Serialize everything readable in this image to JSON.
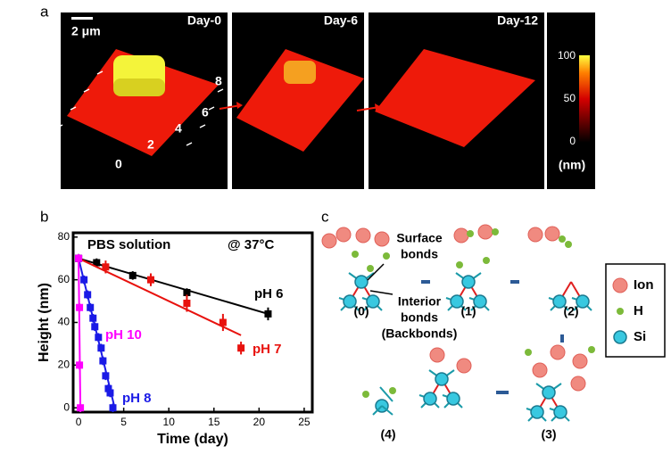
{
  "panel_a": {
    "label": "a",
    "scale_bar": "2 μm",
    "images": [
      "Day-0",
      "Day-6",
      "Day-12"
    ],
    "axis_labels": [
      "0",
      "2",
      "4",
      "6",
      "8"
    ],
    "colorbar": {
      "ticks": [
        "100",
        "50",
        "0"
      ],
      "unit": "(nm)"
    }
  },
  "chart_data": {
    "type": "scatter",
    "panel_label": "b",
    "title": "PBS solution",
    "subtitle": "@ 37°C",
    "x_label": "Time (day)",
    "y_label": "Height (nm)",
    "xlim": [
      -0.6,
      25.9
    ],
    "ylim": [
      -2,
      82
    ],
    "xticks": [
      0,
      5,
      10,
      15,
      20,
      25
    ],
    "yticks": [
      0,
      20,
      40,
      60,
      80
    ],
    "series": [
      {
        "name": "pH 6",
        "color": "#000000",
        "x": [
          0,
          2,
          6,
          12,
          21
        ],
        "values": [
          70,
          68,
          62,
          54,
          44
        ],
        "errors": [
          2,
          2,
          2,
          2,
          3
        ],
        "fit_x": [
          0,
          21
        ],
        "fit_y": [
          70,
          44
        ]
      },
      {
        "name": "pH 7",
        "color": "#e8120e",
        "x": [
          0,
          3,
          8,
          12,
          16,
          18
        ],
        "values": [
          70,
          66,
          60,
          49,
          40,
          28
        ],
        "errors": [
          2,
          3,
          3,
          4,
          4,
          3
        ],
        "fit_x": [
          0,
          18
        ],
        "fit_y": [
          70,
          34
        ]
      },
      {
        "name": "pH 8",
        "color": "#1a1ae6",
        "x": [
          0,
          0.6,
          1.0,
          1.3,
          1.6,
          1.8,
          2.2,
          2.5,
          2.7,
          3.0,
          3.3,
          3.5,
          3.8
        ],
        "values": [
          70,
          60,
          53,
          47,
          42,
          38,
          33,
          28,
          22,
          15,
          9,
          7,
          0
        ],
        "errors": [
          2,
          2,
          2,
          2,
          2,
          2,
          2,
          2,
          2,
          2,
          2,
          2,
          2
        ],
        "fit_x": [
          0,
          4
        ],
        "fit_y": [
          70,
          0
        ]
      },
      {
        "name": "pH 10",
        "color": "#ff00ff",
        "x": [
          0,
          0.1,
          0.1,
          0.2
        ],
        "values": [
          70,
          47,
          20,
          0
        ],
        "errors": [
          2,
          2,
          2,
          2
        ],
        "fit_x": [
          0,
          0.2
        ],
        "fit_y": [
          70,
          0
        ]
      }
    ]
  },
  "panel_c": {
    "label": "c",
    "surface_bonds": [
      "Surface",
      "bonds"
    ],
    "interior_bonds": [
      "Interior",
      "bonds",
      "(Backbonds)"
    ],
    "stages": [
      "(0)",
      "(1)",
      "(2)",
      "(3)",
      "(4)"
    ],
    "legend": [
      "Ion",
      "H",
      "Si"
    ]
  }
}
